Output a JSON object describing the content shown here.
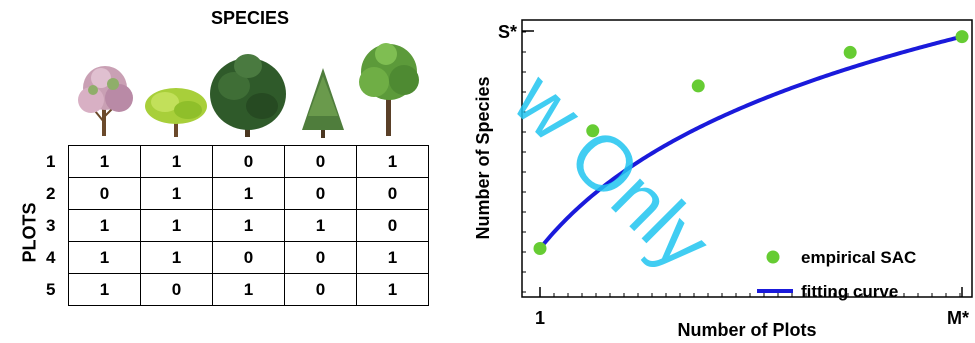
{
  "left_panel": {
    "species_title": "SPECIES",
    "plots_title": "PLOTS",
    "species_icons": [
      "flowering-tree-icon",
      "round-tree-icon",
      "conifer-broad-icon",
      "conifer-narrow-icon",
      "deciduous-tree-icon"
    ],
    "row_labels": [
      "1",
      "2",
      "3",
      "4",
      "5"
    ],
    "matrix": [
      [
        "1",
        "1",
        "0",
        "0",
        "1"
      ],
      [
        "0",
        "1",
        "1",
        "0",
        "0"
      ],
      [
        "1",
        "1",
        "1",
        "1",
        "0"
      ],
      [
        "1",
        "1",
        "0",
        "0",
        "1"
      ],
      [
        "1",
        "0",
        "1",
        "0",
        "1"
      ]
    ]
  },
  "watermark": "w Only",
  "chart_data": {
    "type": "scatter",
    "xlabel": "Number of Plots",
    "ylabel": "Number of Species",
    "x_tick_labels": [
      "1",
      "M*"
    ],
    "y_tick_labels": [
      "S*"
    ],
    "xlim": [
      0.94,
      5.0
    ],
    "ylim": [
      0.0,
      1.0
    ],
    "series": [
      {
        "name": "empirical SAC",
        "x": [
          1.0,
          1.5,
          2.5,
          3.94,
          5.0
        ],
        "y": [
          0.175,
          0.6,
          0.762,
          0.883,
          0.94
        ]
      },
      {
        "name": "fitting curve"
      }
    ],
    "legend": "bottom-right",
    "colors": {
      "points": "#66cc33",
      "curve": "#1a1adb"
    }
  }
}
